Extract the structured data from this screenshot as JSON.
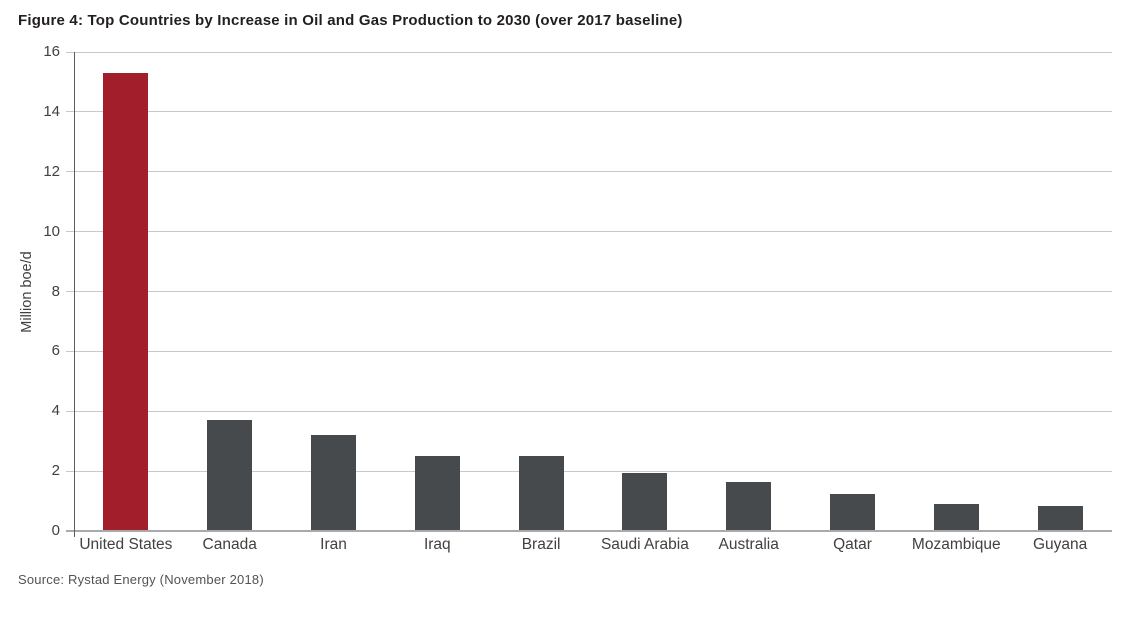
{
  "figure": {
    "title": "Figure 4: Top Countries by Increase in Oil and Gas Production to 2030 (over 2017 baseline)",
    "source": "Source: Rystad Energy (November 2018)"
  },
  "chart_data": {
    "type": "bar",
    "title": "Figure 4: Top Countries by Increase in Oil and Gas Production to 2030 (over 2017 baseline)",
    "categories": [
      "United States",
      "Canada",
      "Iran",
      "Iraq",
      "Brazil",
      "Saudi Arabia",
      "Australia",
      "Qatar",
      "Mozambique",
      "Guyana"
    ],
    "values": [
      15.3,
      3.7,
      3.2,
      2.5,
      2.5,
      1.95,
      1.65,
      1.25,
      0.9,
      0.85
    ],
    "xlabel": "",
    "ylabel": "Million boe/d",
    "ylim": [
      0,
      16
    ],
    "yticks": [
      0,
      2,
      4,
      6,
      8,
      10,
      12,
      14,
      16
    ],
    "grid": true,
    "legend": false,
    "highlight_index": 0,
    "source": "Source: Rystad Energy (November 2018)",
    "colors": {
      "highlight_bar": "#a21e2b",
      "default_bar": "#464a4c",
      "gridline": "#c7c8ca",
      "x_axis_line": "#a7a9ac",
      "y_axis_line": "#5a5b5d",
      "tick_text": "#414042",
      "title_text": "#231f20",
      "source_text": "#525355"
    }
  }
}
